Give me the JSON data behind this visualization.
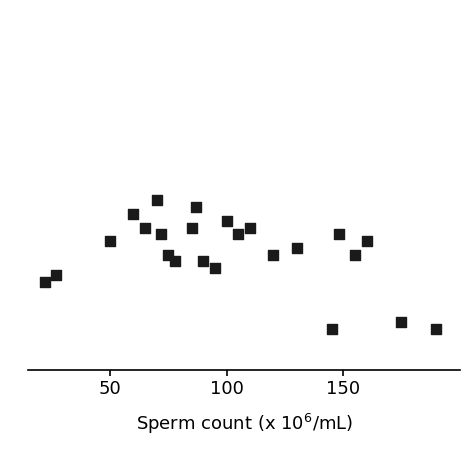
{
  "x": [
    22,
    27,
    50,
    60,
    65,
    70,
    72,
    75,
    78,
    85,
    87,
    90,
    95,
    100,
    105,
    110,
    120,
    130,
    145,
    148,
    155,
    160,
    175,
    190
  ],
  "y": [
    6.5,
    7.0,
    9.5,
    11.5,
    10.5,
    12.5,
    10.0,
    8.5,
    8.0,
    10.5,
    12.0,
    8.0,
    7.5,
    11.0,
    10.0,
    10.5,
    8.5,
    9.0,
    3.0,
    10.0,
    8.5,
    9.5,
    3.5,
    3.0
  ],
  "xlabel": "Sperm count (x 10$^6$/mL)",
  "xlim": [
    15,
    200
  ],
  "ylim": [
    0,
    14
  ],
  "xticks": [
    50,
    100,
    150
  ],
  "marker": "s",
  "marker_color": "#1a1a1a",
  "marker_size": 55,
  "background_color": "#ffffff",
  "xlabel_fontsize": 13,
  "tick_labelsize": 13
}
